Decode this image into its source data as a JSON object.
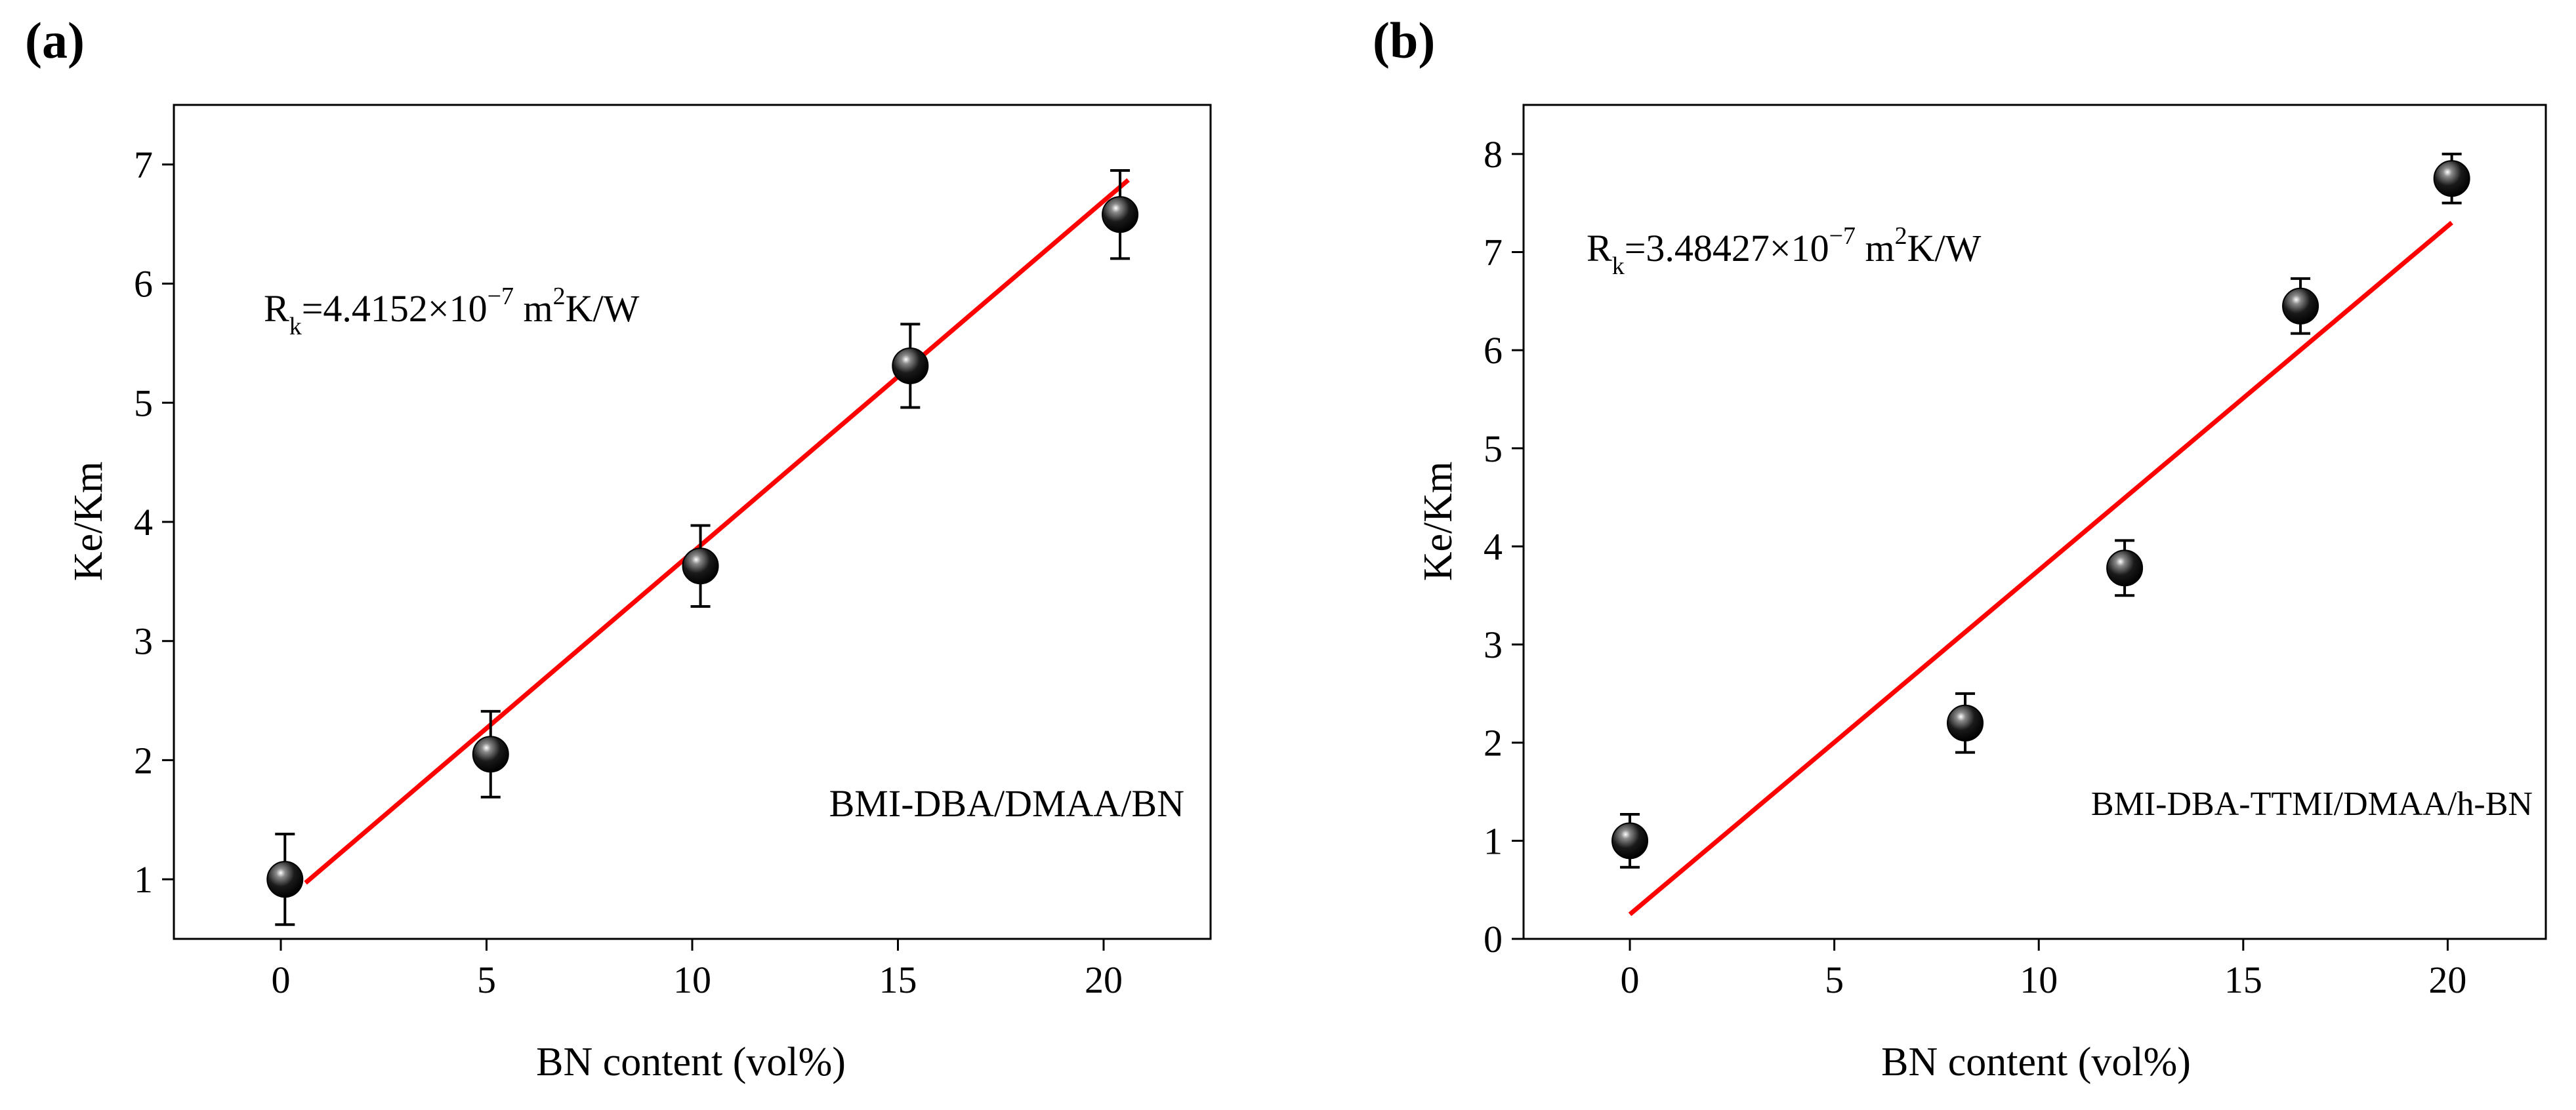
{
  "chart_data": [
    {
      "panel": "(a)",
      "type": "scatter",
      "xlabel": "BN content (vol%)",
      "ylabel": "Ke/Km",
      "xlim": [
        -2.6,
        22.6
      ],
      "ylim": [
        0.5,
        7.5
      ],
      "xticks": [
        0,
        5,
        10,
        15,
        20
      ],
      "yticks": [
        1,
        2,
        3,
        4,
        5,
        6,
        7
      ],
      "annotation": {
        "base": "R",
        "subscript": "k",
        "text": "=4.4152×10",
        "exponent": "−7",
        "unit_before": " m",
        "unit_exponent": "2",
        "unit_after": "K/W"
      },
      "legend_text": "BMI-DBA/DMAA/BN",
      "series": [
        {
          "name": "data",
          "x": [
            0.1,
            5.1,
            10.2,
            15.3,
            20.4
          ],
          "y": [
            1.0,
            2.05,
            3.63,
            5.31,
            6.58
          ],
          "err": [
            0.38,
            0.36,
            0.34,
            0.35,
            0.37
          ]
        }
      ],
      "fit": {
        "x": [
          0.6,
          20.6
        ],
        "y": [
          0.97,
          6.87
        ],
        "color": "#ff0000"
      }
    },
    {
      "panel": "(b)",
      "type": "scatter",
      "xlabel": "BN content (vol%)",
      "ylabel": "Ke/Km",
      "xlim": [
        -2.6,
        22.4
      ],
      "ylim": [
        0.0,
        8.5
      ],
      "xticks": [
        0,
        5,
        10,
        15,
        20
      ],
      "yticks": [
        0,
        1,
        2,
        3,
        4,
        5,
        6,
        7,
        8
      ],
      "annotation": {
        "base": "R",
        "subscript": "k",
        "text": "=3.48427×10",
        "exponent": "−7",
        "unit_before": " m",
        "unit_exponent": "2",
        "unit_after": "K/W"
      },
      "legend_text": "BMI-DBA-TTMI/DMAA/h-BN",
      "series": [
        {
          "name": "data",
          "x": [
            0.0,
            8.2,
            12.1,
            16.4,
            20.1
          ],
          "y": [
            1.0,
            2.2,
            3.78,
            6.45,
            7.75
          ],
          "err": [
            0.27,
            0.3,
            0.28,
            0.28,
            0.25
          ]
        }
      ],
      "fit": {
        "x": [
          0.0,
          20.1
        ],
        "y": [
          0.25,
          7.3
        ],
        "color": "#ff0000"
      }
    }
  ]
}
